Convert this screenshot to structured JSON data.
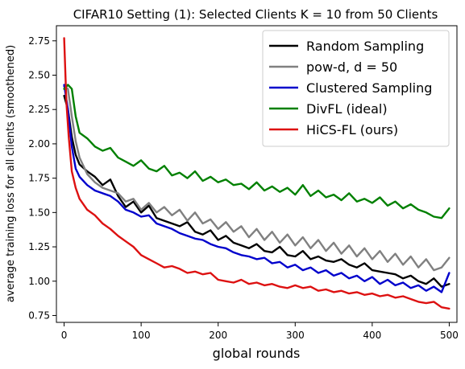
{
  "chart_data": {
    "type": "line",
    "title": "CIFAR10 Setting (1): Selected Clients K = 10 from 50 Clients",
    "xlabel": "global rounds",
    "ylabel": "average training loss for all clients (smoothened)",
    "xlim": [
      -10,
      510
    ],
    "ylim": [
      0.7,
      2.86
    ],
    "xticks": [
      0,
      100,
      200,
      300,
      400,
      500
    ],
    "yticks": [
      0.75,
      1.0,
      1.25,
      1.5,
      1.75,
      2.0,
      2.25,
      2.5,
      2.75
    ],
    "xtick_labels": [
      "0",
      "100",
      "200",
      "300",
      "400",
      "500"
    ],
    "ytick_labels": [
      "0.75",
      "1.00",
      "1.25",
      "1.50",
      "1.75",
      "2.00",
      "2.25",
      "2.50",
      "2.75"
    ],
    "grid": false,
    "legend_position": "top-right",
    "series": [
      {
        "name": "Random Sampling",
        "color": "#000000",
        "x": [
          0,
          5,
          10,
          15,
          20,
          30,
          40,
          50,
          60,
          70,
          80,
          90,
          100,
          110,
          120,
          130,
          140,
          150,
          160,
          170,
          180,
          190,
          200,
          210,
          220,
          230,
          240,
          250,
          260,
          270,
          280,
          290,
          300,
          310,
          320,
          330,
          340,
          350,
          360,
          370,
          380,
          390,
          400,
          410,
          420,
          430,
          440,
          450,
          460,
          470,
          480,
          490,
          500
        ],
        "y": [
          2.35,
          2.25,
          2.05,
          1.92,
          1.85,
          1.8,
          1.76,
          1.7,
          1.74,
          1.62,
          1.54,
          1.58,
          1.5,
          1.55,
          1.46,
          1.44,
          1.42,
          1.4,
          1.43,
          1.36,
          1.34,
          1.37,
          1.3,
          1.33,
          1.28,
          1.26,
          1.24,
          1.27,
          1.22,
          1.21,
          1.25,
          1.19,
          1.18,
          1.22,
          1.16,
          1.18,
          1.15,
          1.14,
          1.16,
          1.12,
          1.1,
          1.13,
          1.08,
          1.07,
          1.06,
          1.05,
          1.02,
          1.04,
          1.0,
          0.98,
          1.02,
          0.96,
          0.98
        ]
      },
      {
        "name": "pow-d, d = 50",
        "color": "#808080",
        "x": [
          0,
          5,
          10,
          15,
          20,
          30,
          40,
          50,
          60,
          70,
          80,
          90,
          100,
          110,
          120,
          130,
          140,
          150,
          160,
          170,
          180,
          190,
          200,
          210,
          220,
          230,
          240,
          250,
          260,
          270,
          280,
          290,
          300,
          310,
          320,
          330,
          340,
          350,
          360,
          370,
          380,
          390,
          400,
          410,
          420,
          430,
          440,
          450,
          460,
          470,
          480,
          490,
          500
        ],
        "y": [
          2.42,
          2.4,
          2.2,
          2.02,
          1.9,
          1.78,
          1.72,
          1.68,
          1.66,
          1.64,
          1.58,
          1.6,
          1.52,
          1.57,
          1.5,
          1.54,
          1.48,
          1.52,
          1.44,
          1.5,
          1.42,
          1.45,
          1.38,
          1.43,
          1.36,
          1.4,
          1.32,
          1.38,
          1.3,
          1.36,
          1.28,
          1.34,
          1.26,
          1.32,
          1.24,
          1.3,
          1.22,
          1.28,
          1.2,
          1.26,
          1.18,
          1.24,
          1.16,
          1.22,
          1.14,
          1.2,
          1.12,
          1.18,
          1.1,
          1.16,
          1.08,
          1.1,
          1.17
        ]
      },
      {
        "name": "Clustered Sampling",
        "color": "#0000cc",
        "x": [
          0,
          5,
          10,
          15,
          20,
          30,
          40,
          50,
          60,
          70,
          80,
          90,
          100,
          110,
          120,
          130,
          140,
          150,
          160,
          170,
          180,
          190,
          200,
          210,
          220,
          230,
          240,
          250,
          260,
          270,
          280,
          290,
          300,
          310,
          320,
          330,
          340,
          350,
          360,
          370,
          380,
          390,
          400,
          410,
          420,
          430,
          440,
          450,
          460,
          470,
          480,
          490,
          500
        ],
        "y": [
          2.43,
          2.25,
          1.98,
          1.82,
          1.76,
          1.7,
          1.66,
          1.64,
          1.62,
          1.58,
          1.52,
          1.5,
          1.47,
          1.48,
          1.42,
          1.4,
          1.38,
          1.35,
          1.33,
          1.31,
          1.3,
          1.27,
          1.25,
          1.24,
          1.21,
          1.19,
          1.18,
          1.16,
          1.17,
          1.13,
          1.14,
          1.1,
          1.12,
          1.08,
          1.1,
          1.06,
          1.08,
          1.04,
          1.06,
          1.02,
          1.04,
          1.0,
          1.03,
          0.98,
          1.01,
          0.97,
          0.99,
          0.95,
          0.97,
          0.93,
          0.96,
          0.92,
          1.06
        ]
      },
      {
        "name": "DivFL (ideal)",
        "color": "#008000",
        "x": [
          0,
          5,
          10,
          15,
          20,
          30,
          40,
          50,
          60,
          70,
          80,
          90,
          100,
          110,
          120,
          130,
          140,
          150,
          160,
          170,
          180,
          190,
          200,
          210,
          220,
          230,
          240,
          250,
          260,
          270,
          280,
          290,
          300,
          310,
          320,
          330,
          340,
          350,
          360,
          370,
          380,
          390,
          400,
          410,
          420,
          430,
          440,
          450,
          460,
          470,
          480,
          490,
          500
        ],
        "y": [
          2.4,
          2.43,
          2.4,
          2.2,
          2.08,
          2.04,
          1.98,
          1.95,
          1.97,
          1.9,
          1.87,
          1.84,
          1.88,
          1.82,
          1.8,
          1.84,
          1.77,
          1.79,
          1.75,
          1.8,
          1.73,
          1.76,
          1.72,
          1.74,
          1.7,
          1.71,
          1.67,
          1.72,
          1.66,
          1.69,
          1.65,
          1.68,
          1.63,
          1.7,
          1.62,
          1.66,
          1.61,
          1.63,
          1.59,
          1.64,
          1.58,
          1.6,
          1.57,
          1.61,
          1.55,
          1.58,
          1.53,
          1.56,
          1.52,
          1.5,
          1.47,
          1.46,
          1.53
        ]
      },
      {
        "name": "HiCS-FL (ours)",
        "color": "#dd1111",
        "x": [
          0,
          3,
          6,
          10,
          15,
          20,
          30,
          40,
          50,
          60,
          70,
          80,
          90,
          100,
          110,
          120,
          130,
          140,
          150,
          160,
          170,
          180,
          190,
          200,
          210,
          220,
          230,
          240,
          250,
          260,
          270,
          280,
          290,
          300,
          310,
          320,
          330,
          340,
          350,
          360,
          370,
          380,
          390,
          400,
          410,
          420,
          430,
          440,
          450,
          460,
          470,
          480,
          490,
          500
        ],
        "y": [
          2.77,
          2.3,
          2.05,
          1.8,
          1.68,
          1.6,
          1.52,
          1.48,
          1.42,
          1.38,
          1.33,
          1.29,
          1.25,
          1.19,
          1.16,
          1.13,
          1.1,
          1.11,
          1.09,
          1.06,
          1.07,
          1.05,
          1.06,
          1.01,
          1.0,
          0.99,
          1.01,
          0.98,
          0.99,
          0.97,
          0.98,
          0.96,
          0.95,
          0.97,
          0.95,
          0.96,
          0.93,
          0.94,
          0.92,
          0.93,
          0.91,
          0.92,
          0.9,
          0.91,
          0.89,
          0.9,
          0.88,
          0.89,
          0.87,
          0.85,
          0.84,
          0.85,
          0.81,
          0.8
        ]
      }
    ]
  }
}
